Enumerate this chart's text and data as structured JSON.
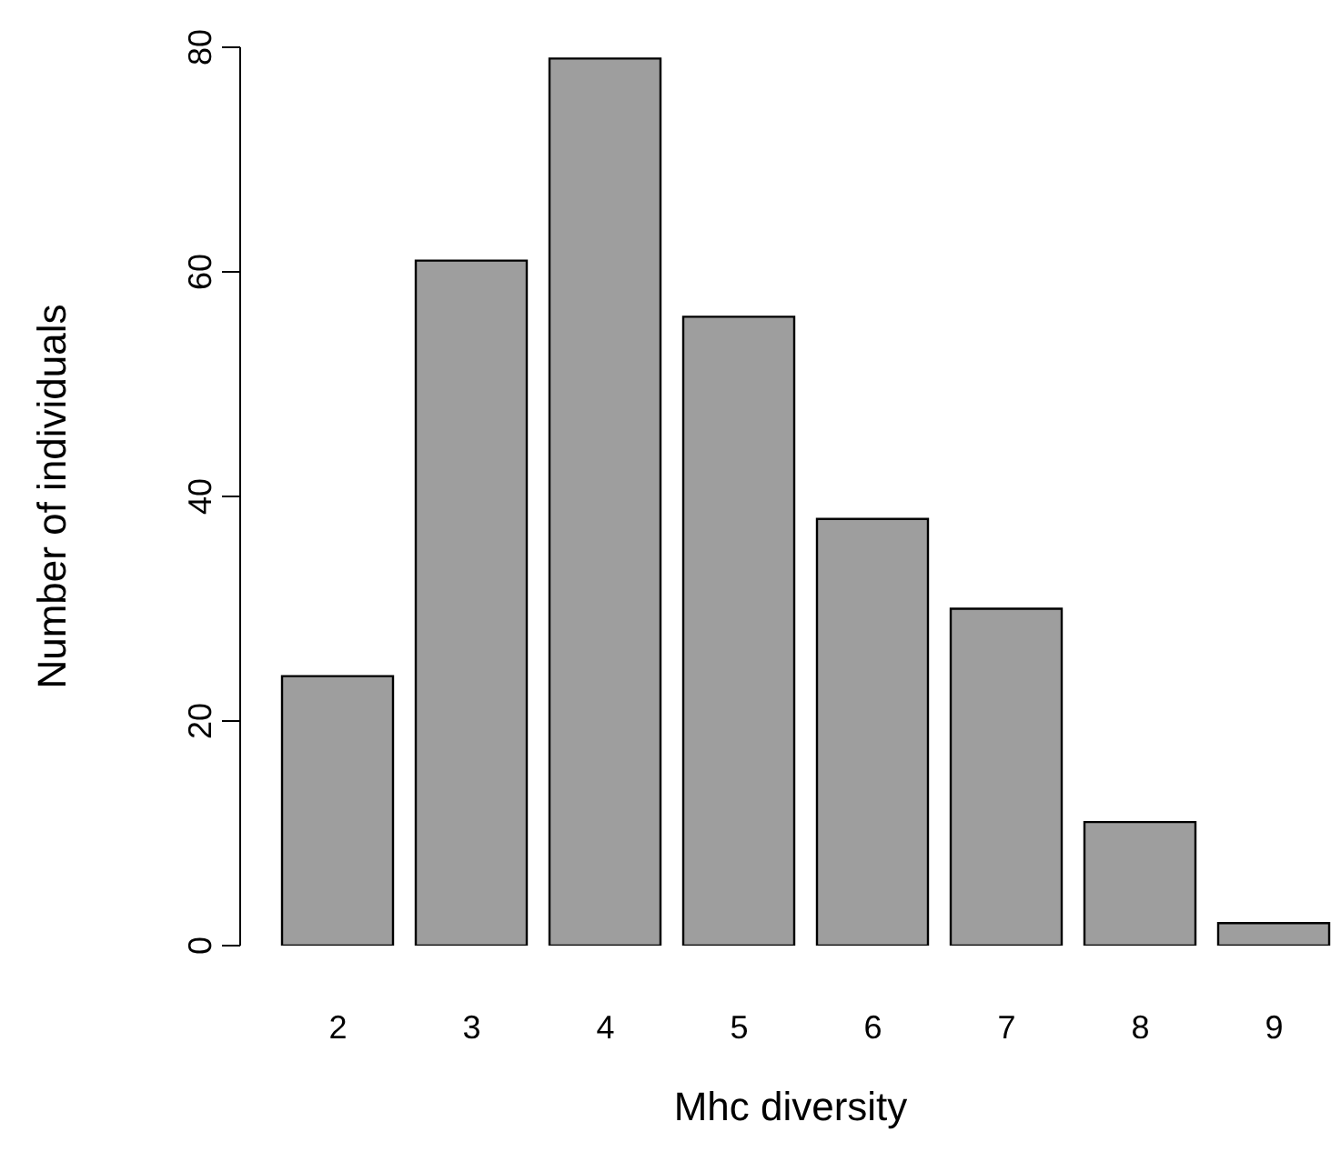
{
  "chart_data": {
    "type": "bar",
    "xlabel": "Mhc diversity",
    "ylabel": "Number of individuals",
    "categories": [
      "2",
      "3",
      "4",
      "5",
      "6",
      "7",
      "8",
      "9"
    ],
    "values": [
      24,
      61,
      79,
      56,
      38,
      30,
      11,
      2
    ],
    "color": "#9e9e9e",
    "ylim": [
      0,
      80
    ],
    "yticks": [
      0,
      20,
      40,
      60,
      80
    ]
  }
}
